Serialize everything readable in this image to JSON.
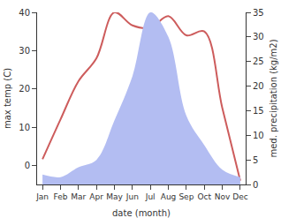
{
  "chart_data": {
    "type": "line",
    "x_label": "date (month)",
    "y_label": "max temp (C)",
    "y2_label": "med. precipitation (kg/m2)",
    "categories": [
      "Jan",
      "Feb",
      "Mar",
      "Apr",
      "May",
      "Jun",
      "Jul",
      "Aug",
      "Sep",
      "Oct",
      "Nov",
      "Dec"
    ],
    "ylim": [
      -5,
      40
    ],
    "yticks": [
      0,
      10,
      20,
      30,
      40
    ],
    "y2lim": [
      0,
      35
    ],
    "y2ticks": [
      0,
      5,
      10,
      15,
      20,
      25,
      30,
      35
    ],
    "grid": false,
    "series": [
      {
        "name": "med. precipitation",
        "type": "area",
        "axis": "y2",
        "color": "#b3bdf2",
        "values": [
          2,
          1.5,
          3.5,
          5,
          13,
          22,
          35,
          30,
          14,
          8,
          3,
          1.5
        ]
      },
      {
        "name": "max temp",
        "type": "line",
        "color": "#cd5c5c",
        "values": [
          1.6,
          12,
          22,
          28,
          40,
          36.6,
          36,
          39,
          34,
          35,
          15,
          -4
        ]
      }
    ]
  }
}
